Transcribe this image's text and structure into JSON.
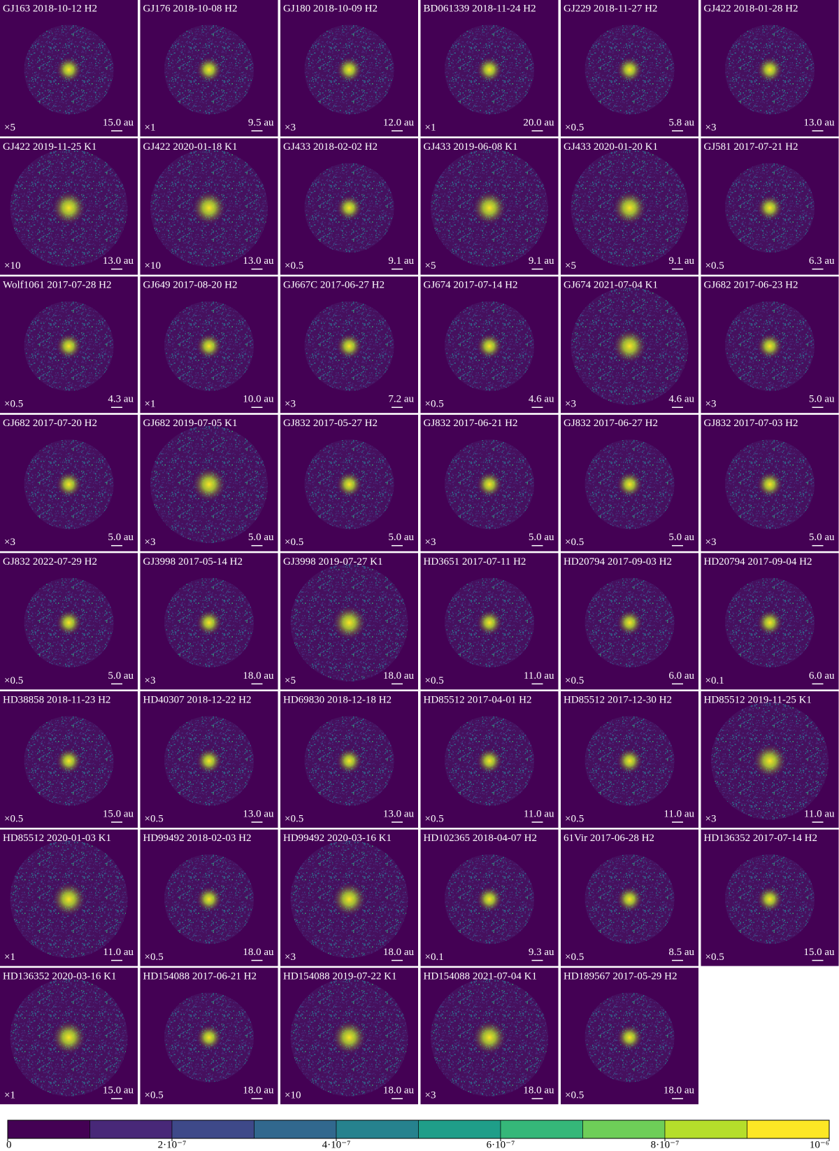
{
  "panels": [
    {
      "title": "GJ163 2018-10-12 H2",
      "factor": "×5",
      "scale": "15.0 au"
    },
    {
      "title": "GJ176 2018-10-08 H2",
      "factor": "×1",
      "scale": "9.5 au"
    },
    {
      "title": "GJ180 2018-10-09 H2",
      "factor": "×3",
      "scale": "12.0 au"
    },
    {
      "title": "BD061339 2018-11-24 H2",
      "factor": "×1",
      "scale": "20.0 au"
    },
    {
      "title": "GJ229 2018-11-27 H2",
      "factor": "×0.5",
      "scale": "5.8 au"
    },
    {
      "title": "GJ422 2018-01-28 H2",
      "factor": "×3",
      "scale": "13.0 au"
    },
    {
      "title": "GJ422 2019-11-25 K1",
      "factor": "×10",
      "scale": "13.0 au"
    },
    {
      "title": "GJ422 2020-01-18 K1",
      "factor": "×10",
      "scale": "13.0 au"
    },
    {
      "title": "GJ433 2018-02-02 H2",
      "factor": "×0.5",
      "scale": "9.1 au"
    },
    {
      "title": "GJ433 2019-06-08 K1",
      "factor": "×5",
      "scale": "9.1 au"
    },
    {
      "title": "GJ433 2020-01-20 K1",
      "factor": "×5",
      "scale": "9.1 au"
    },
    {
      "title": "GJ581 2017-07-21 H2",
      "factor": "×0.5",
      "scale": "6.3 au"
    },
    {
      "title": "Wolf1061 2017-07-28 H2",
      "factor": "×0.5",
      "scale": "4.3 au"
    },
    {
      "title": "GJ649 2017-08-20 H2",
      "factor": "×1",
      "scale": "10.0 au"
    },
    {
      "title": "GJ667C 2017-06-27 H2",
      "factor": "×3",
      "scale": "7.2 au"
    },
    {
      "title": "GJ674 2017-07-14 H2",
      "factor": "×0.5",
      "scale": "4.6 au"
    },
    {
      "title": "GJ674 2021-07-04 K1",
      "factor": "×3",
      "scale": "4.6 au"
    },
    {
      "title": "GJ682 2017-06-23 H2",
      "factor": "×3",
      "scale": "5.0 au"
    },
    {
      "title": "GJ682 2017-07-20 H2",
      "factor": "×3",
      "scale": "5.0 au"
    },
    {
      "title": "GJ682 2019-07-05 K1",
      "factor": "×3",
      "scale": "5.0 au"
    },
    {
      "title": "GJ832 2017-05-27 H2",
      "factor": "×0.5",
      "scale": "5.0 au"
    },
    {
      "title": "GJ832 2017-06-21 H2",
      "factor": "×3",
      "scale": "5.0 au"
    },
    {
      "title": "GJ832 2017-06-27 H2",
      "factor": "×0.5",
      "scale": "5.0 au"
    },
    {
      "title": "GJ832 2017-07-03 H2",
      "factor": "×3",
      "scale": "5.0 au"
    },
    {
      "title": "GJ832 2022-07-29 H2",
      "factor": "×0.5",
      "scale": "5.0 au"
    },
    {
      "title": "GJ3998 2017-05-14 H2",
      "factor": "×3",
      "scale": "18.0 au"
    },
    {
      "title": "GJ3998 2019-07-27 K1",
      "factor": "×5",
      "scale": "18.0 au"
    },
    {
      "title": "HD3651 2017-07-11 H2",
      "factor": "×0.5",
      "scale": "11.0 au"
    },
    {
      "title": "HD20794 2017-09-03 H2",
      "factor": "×0.5",
      "scale": "6.0 au"
    },
    {
      "title": "HD20794 2017-09-04 H2",
      "factor": "×0.1",
      "scale": "6.0 au"
    },
    {
      "title": "HD38858 2018-11-23 H2",
      "factor": "×0.5",
      "scale": "15.0 au"
    },
    {
      "title": "HD40307 2018-12-22 H2",
      "factor": "×0.5",
      "scale": "13.0 au"
    },
    {
      "title": "HD69830 2018-12-18 H2",
      "factor": "×0.5",
      "scale": "13.0 au"
    },
    {
      "title": "HD85512 2017-04-01 H2",
      "factor": "×0.5",
      "scale": "11.0 au"
    },
    {
      "title": "HD85512 2017-12-30 H2",
      "factor": "×0.5",
      "scale": "11.0 au"
    },
    {
      "title": "HD85512 2019-11-25 K1",
      "factor": "×3",
      "scale": "11.0 au"
    },
    {
      "title": "HD85512 2020-01-03 K1",
      "factor": "×1",
      "scale": "11.0 au"
    },
    {
      "title": "HD99492 2018-02-03 H2",
      "factor": "×0.5",
      "scale": "18.0 au"
    },
    {
      "title": "HD99492 2020-03-16 K1",
      "factor": "×3",
      "scale": "18.0 au"
    },
    {
      "title": "HD102365 2018-04-07 H2",
      "factor": "×0.1",
      "scale": "9.3 au"
    },
    {
      "title": "61Vir 2017-06-28 H2",
      "factor": "×0.5",
      "scale": "8.5 au"
    },
    {
      "title": "HD136352 2017-07-14 H2",
      "factor": "×0.5",
      "scale": "15.0 au"
    },
    {
      "title": "HD136352 2020-03-16 K1",
      "factor": "×1",
      "scale": "15.0 au"
    },
    {
      "title": "HD154088 2017-06-21 H2",
      "factor": "×0.5",
      "scale": "18.0 au"
    },
    {
      "title": "HD154088 2019-07-22 K1",
      "factor": "×10",
      "scale": "18.0 au"
    },
    {
      "title": "HD154088 2021-07-04 K1",
      "factor": "×3",
      "scale": "18.0 au"
    },
    {
      "title": "HD189567 2017-05-29 H2",
      "factor": "×0.5",
      "scale": "18.0 au"
    }
  ],
  "colorbar": {
    "colors": [
      "#440154",
      "#482878",
      "#3e4989",
      "#31688e",
      "#26828e",
      "#1f9e89",
      "#35b779",
      "#6ece58",
      "#b5de2b",
      "#fde725"
    ],
    "lim": [
      0,
      1e-06
    ],
    "ticks": [
      0,
      {
        "value": 2e-07,
        "label": "2·10⁻⁷"
      },
      {
        "value": 4e-07,
        "label": "4·10⁻⁷"
      },
      {
        "value": 6e-07,
        "label": "6·10⁻⁷"
      },
      {
        "value": 8e-07,
        "label": "8·10⁻⁷"
      },
      {
        "value": 1e-06,
        "label": "10⁻⁶"
      }
    ]
  }
}
